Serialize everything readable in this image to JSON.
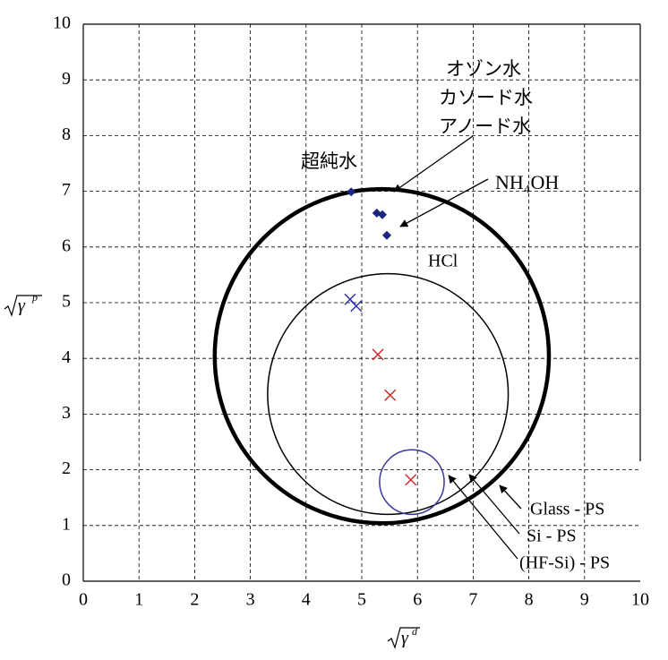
{
  "chart_data": {
    "type": "scatter",
    "xlim": [
      0,
      10
    ],
    "ylim": [
      0,
      10
    ],
    "xticks": [
      0,
      1,
      2,
      3,
      4,
      5,
      6,
      7,
      8,
      9,
      10
    ],
    "yticks": [
      0,
      1,
      2,
      3,
      4,
      5,
      6,
      7,
      8,
      9,
      10
    ],
    "grid": true,
    "xlabel": {
      "base": "γ",
      "sup": "d"
    },
    "ylabel": {
      "base": "γ",
      "sup": "p"
    },
    "series": [
      {
        "marker": "diamond",
        "color": "#1a237e",
        "x": [
          4.81,
          5.27,
          5.37,
          5.45
        ],
        "y": [
          6.99,
          6.61,
          6.58,
          6.21
        ]
      },
      {
        "marker": "cross",
        "color": "#2b2ba8",
        "x": [
          4.79,
          4.9
        ],
        "y": [
          5.06,
          4.94
        ]
      },
      {
        "marker": "cross",
        "color": "#cc2222",
        "x": [
          5.29,
          5.51,
          5.88
        ],
        "y": [
          4.07,
          3.34,
          1.82
        ]
      }
    ],
    "circles": [
      {
        "cx": 5.36,
        "cy": 4.04,
        "r": 3.0,
        "color": "#000000",
        "style": "thick"
      },
      {
        "cx": 5.47,
        "cy": 3.36,
        "r": 2.16,
        "color": "#000000",
        "style": "thin"
      },
      {
        "cx": 5.9,
        "cy": 1.78,
        "r": 0.58,
        "color": "#3a3a9a",
        "style": "thin"
      }
    ],
    "annotations": [
      "オゾン水",
      "カソード水",
      "アノード水",
      "超純水",
      "NH₄OH",
      "HCl",
      "Glass - PS",
      "Si - PS",
      "(HF-Si) - PS"
    ]
  }
}
